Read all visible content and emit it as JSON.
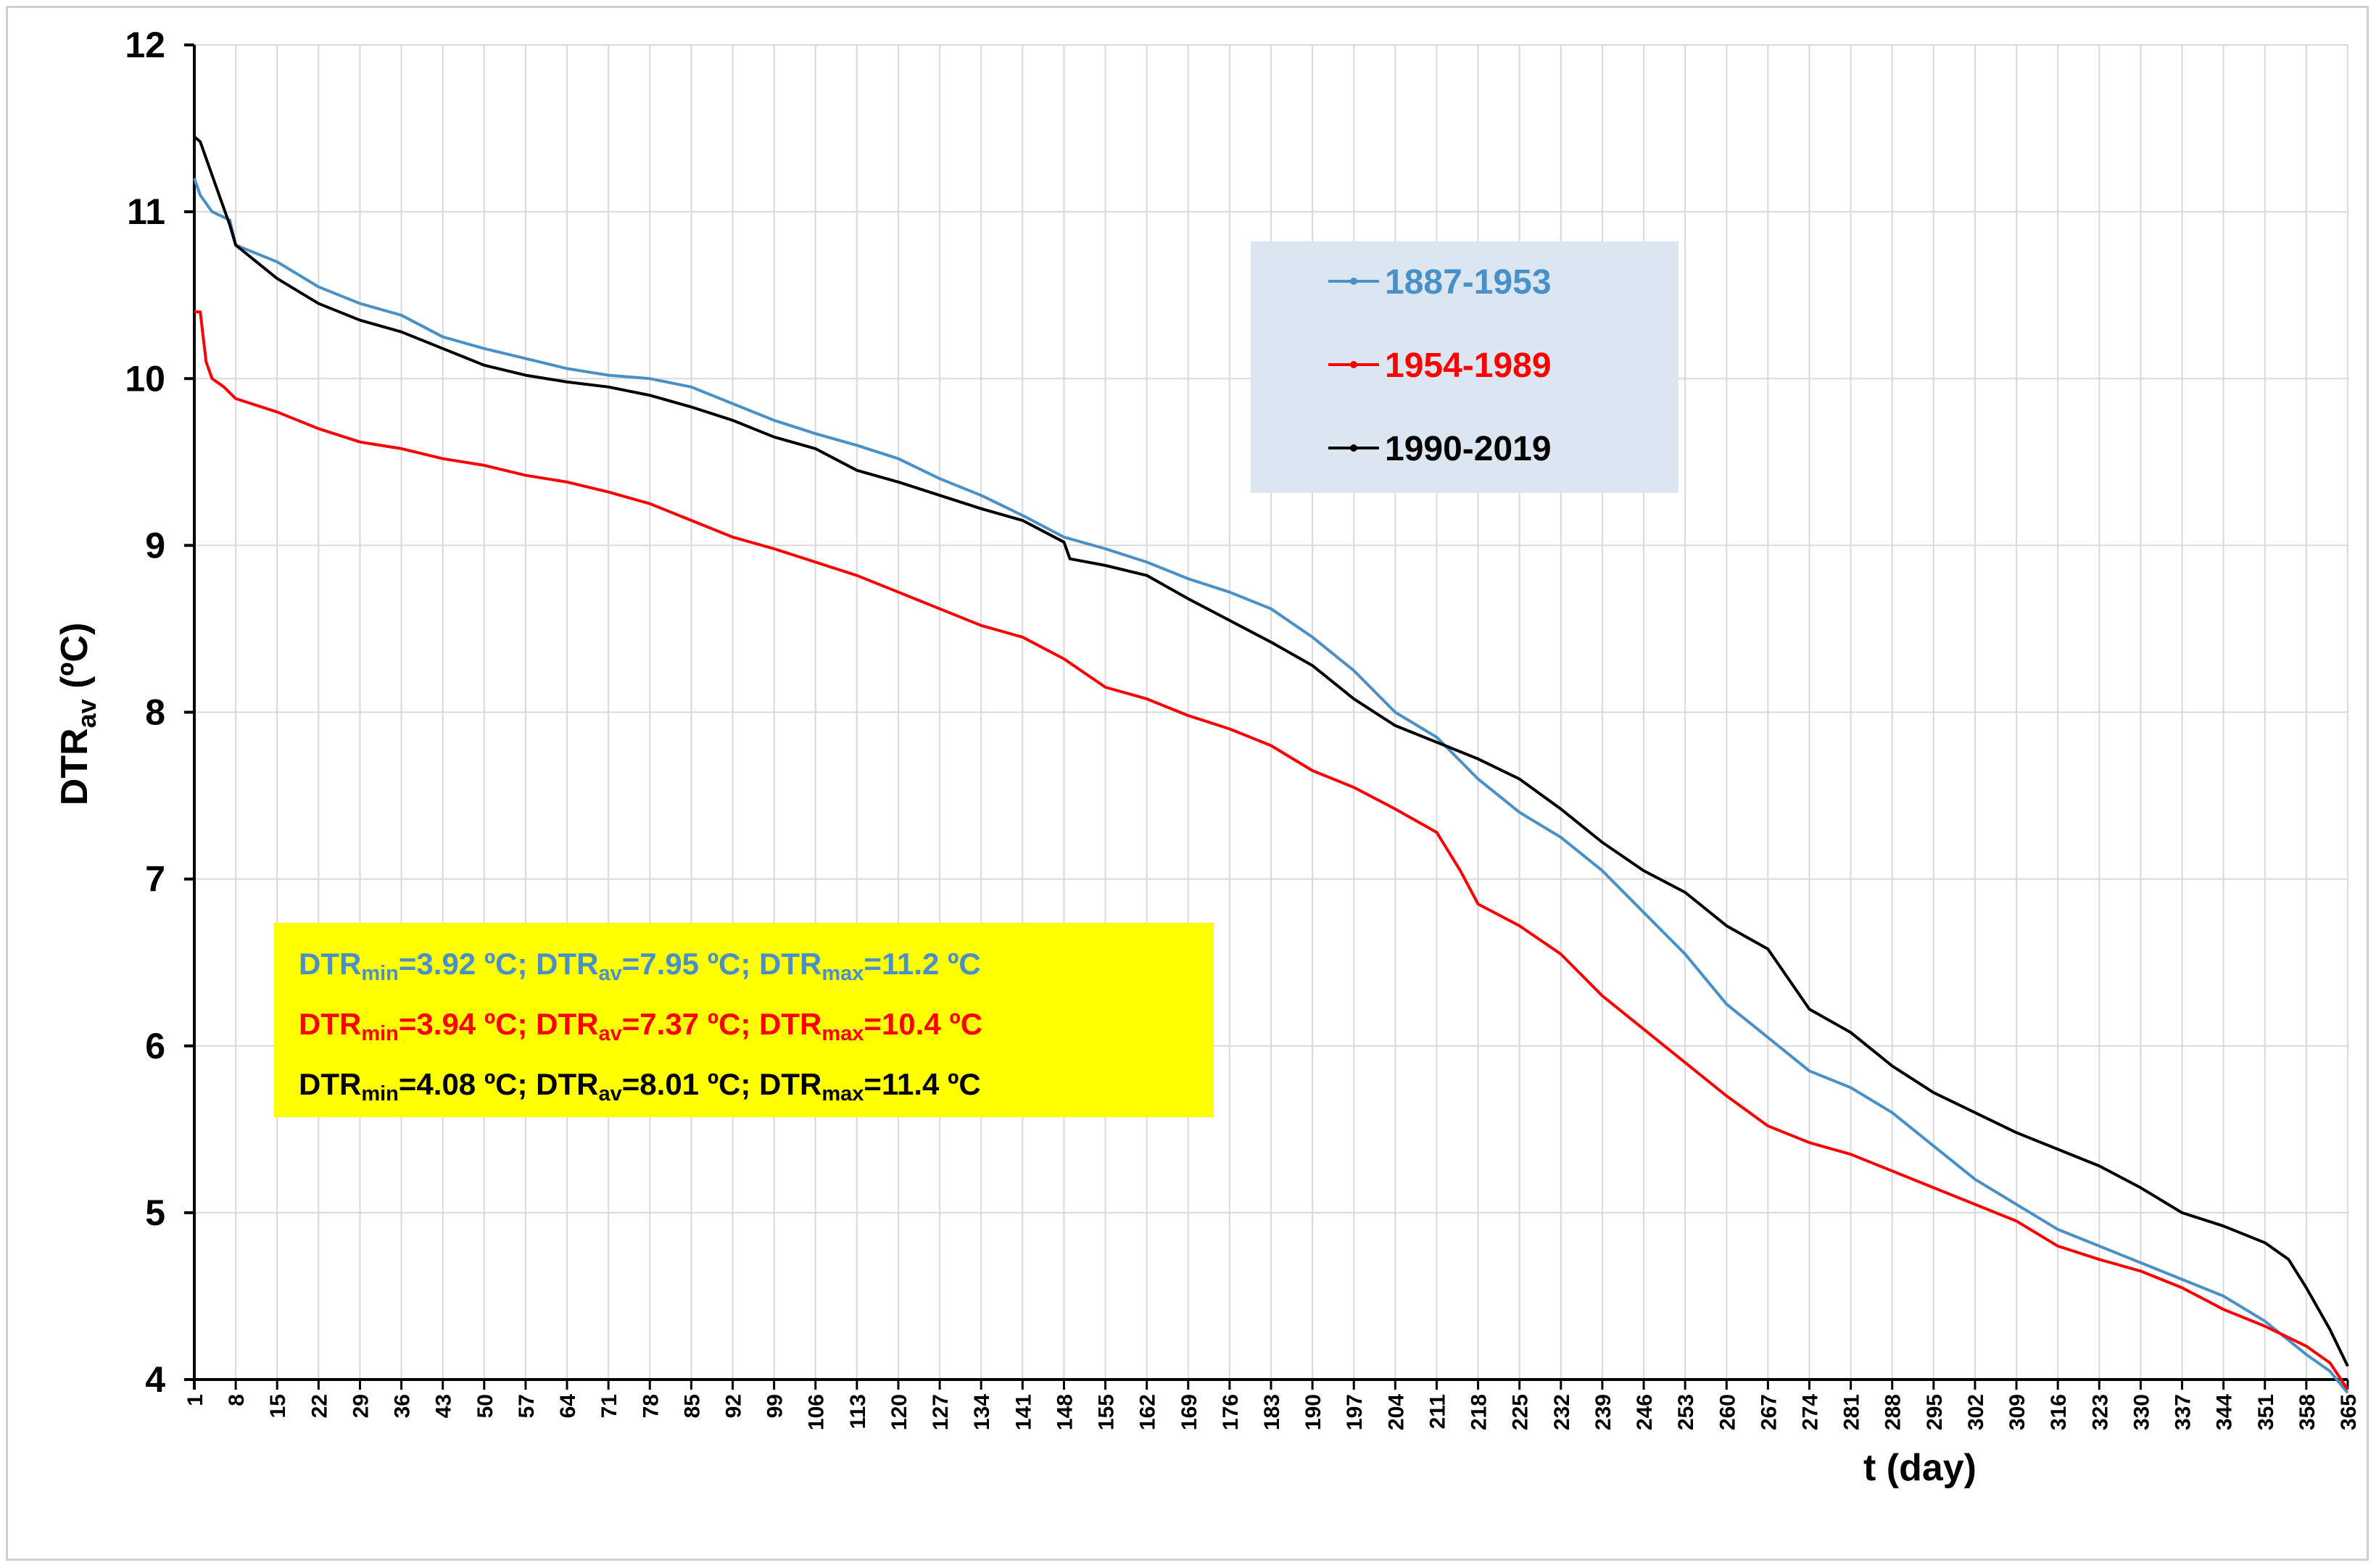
{
  "chart_data": {
    "type": "line",
    "title": "",
    "xlabel": "t (day)",
    "ylabel_main": "DTR",
    "ylabel_sub": "av",
    "ylabel_unit": " (ºC)",
    "xlim": [
      1,
      365
    ],
    "ylim": [
      4,
      12
    ],
    "x_ticks": [
      1,
      8,
      15,
      22,
      29,
      36,
      43,
      50,
      57,
      64,
      71,
      78,
      85,
      92,
      99,
      106,
      113,
      120,
      127,
      134,
      141,
      148,
      155,
      162,
      169,
      176,
      183,
      190,
      197,
      204,
      211,
      218,
      225,
      232,
      239,
      246,
      253,
      260,
      267,
      274,
      281,
      288,
      295,
      302,
      309,
      316,
      323,
      330,
      337,
      344,
      351,
      358,
      365
    ],
    "y_ticks": [
      4,
      5,
      6,
      7,
      8,
      9,
      10,
      11,
      12
    ],
    "grid": true,
    "legend_position": "top-right",
    "series": [
      {
        "name": "1887-1953",
        "color": "#4a90c8",
        "x": [
          1,
          2,
          4,
          7,
          8,
          15,
          22,
          29,
          36,
          43,
          50,
          57,
          64,
          71,
          78,
          85,
          92,
          99,
          106,
          113,
          120,
          127,
          134,
          141,
          148,
          155,
          162,
          169,
          176,
          183,
          190,
          197,
          204,
          211,
          218,
          225,
          232,
          239,
          246,
          253,
          260,
          267,
          274,
          281,
          288,
          295,
          302,
          309,
          316,
          323,
          330,
          337,
          344,
          351,
          358,
          362,
          365
        ],
        "y": [
          11.2,
          11.1,
          11.0,
          10.95,
          10.8,
          10.7,
          10.55,
          10.45,
          10.38,
          10.25,
          10.18,
          10.12,
          10.06,
          10.02,
          10.0,
          9.95,
          9.85,
          9.75,
          9.67,
          9.6,
          9.52,
          9.4,
          9.3,
          9.18,
          9.05,
          8.98,
          8.9,
          8.8,
          8.72,
          8.62,
          8.45,
          8.25,
          8.0,
          7.85,
          7.6,
          7.4,
          7.25,
          7.05,
          6.8,
          6.55,
          6.25,
          6.05,
          5.85,
          5.75,
          5.6,
          5.4,
          5.2,
          5.05,
          4.9,
          4.8,
          4.7,
          4.6,
          4.5,
          4.35,
          4.15,
          4.05,
          3.92
        ]
      },
      {
        "name": "1954-1989",
        "color": "#ff0000",
        "x": [
          1,
          2,
          3,
          4,
          6,
          8,
          15,
          22,
          29,
          36,
          43,
          50,
          57,
          64,
          71,
          78,
          85,
          92,
          99,
          106,
          113,
          120,
          127,
          134,
          141,
          148,
          155,
          162,
          169,
          176,
          183,
          190,
          197,
          204,
          211,
          215,
          218,
          225,
          232,
          239,
          246,
          253,
          260,
          267,
          274,
          281,
          288,
          295,
          302,
          309,
          316,
          323,
          330,
          337,
          344,
          351,
          358,
          362,
          365
        ],
        "y": [
          10.4,
          10.4,
          10.1,
          10.0,
          9.95,
          9.88,
          9.8,
          9.7,
          9.62,
          9.58,
          9.52,
          9.48,
          9.42,
          9.38,
          9.32,
          9.25,
          9.15,
          9.05,
          8.98,
          8.9,
          8.82,
          8.72,
          8.62,
          8.52,
          8.45,
          8.32,
          8.15,
          8.08,
          7.98,
          7.9,
          7.8,
          7.65,
          7.55,
          7.42,
          7.28,
          7.05,
          6.85,
          6.72,
          6.55,
          6.3,
          6.1,
          5.9,
          5.7,
          5.52,
          5.42,
          5.35,
          5.25,
          5.15,
          5.05,
          4.95,
          4.8,
          4.72,
          4.65,
          4.55,
          4.42,
          4.32,
          4.2,
          4.1,
          3.94
        ]
      },
      {
        "name": "1990-2019",
        "color": "#000000",
        "x": [
          1,
          2,
          3,
          5,
          7,
          8,
          15,
          22,
          29,
          36,
          43,
          50,
          57,
          64,
          71,
          78,
          85,
          92,
          99,
          106,
          113,
          120,
          127,
          134,
          141,
          148,
          149,
          155,
          162,
          169,
          176,
          183,
          190,
          197,
          204,
          211,
          218,
          225,
          232,
          239,
          246,
          253,
          260,
          267,
          274,
          281,
          288,
          295,
          302,
          309,
          316,
          323,
          330,
          337,
          344,
          351,
          355,
          358,
          362,
          365
        ],
        "y": [
          11.45,
          11.42,
          11.32,
          11.12,
          10.92,
          10.8,
          10.6,
          10.45,
          10.35,
          10.28,
          10.18,
          10.08,
          10.02,
          9.98,
          9.95,
          9.9,
          9.83,
          9.75,
          9.65,
          9.58,
          9.45,
          9.38,
          9.3,
          9.22,
          9.15,
          9.02,
          8.92,
          8.88,
          8.82,
          8.68,
          8.55,
          8.42,
          8.28,
          8.08,
          7.92,
          7.82,
          7.72,
          7.6,
          7.42,
          7.22,
          7.05,
          6.92,
          6.72,
          6.58,
          6.22,
          6.08,
          5.88,
          5.72,
          5.6,
          5.48,
          5.38,
          5.28,
          5.15,
          5.0,
          4.92,
          4.82,
          4.72,
          4.55,
          4.3,
          4.08
        ]
      }
    ]
  },
  "stats": [
    {
      "color": "#4a90c8",
      "min": "3.92 ºC",
      "av": "7.95 ºC",
      "max": "11.2 ºC"
    },
    {
      "color": "#ff0000",
      "min": "3.94 ºC",
      "av": "7.37 ºC",
      "max": "10.4 ºC"
    },
    {
      "color": "#000000",
      "min": "4.08 ºC",
      "av": "8.01 ºC",
      "max": "11.4 ºC"
    }
  ],
  "stat_labels": {
    "dtr": "DTR",
    "min": "min",
    "av": "av",
    "max": "max",
    "eq": "=",
    "sep": "; "
  },
  "colors": {
    "legend_bg": "#dbe6f1",
    "stats_bg": "#ffff00",
    "grid": "#d9d9d9"
  }
}
